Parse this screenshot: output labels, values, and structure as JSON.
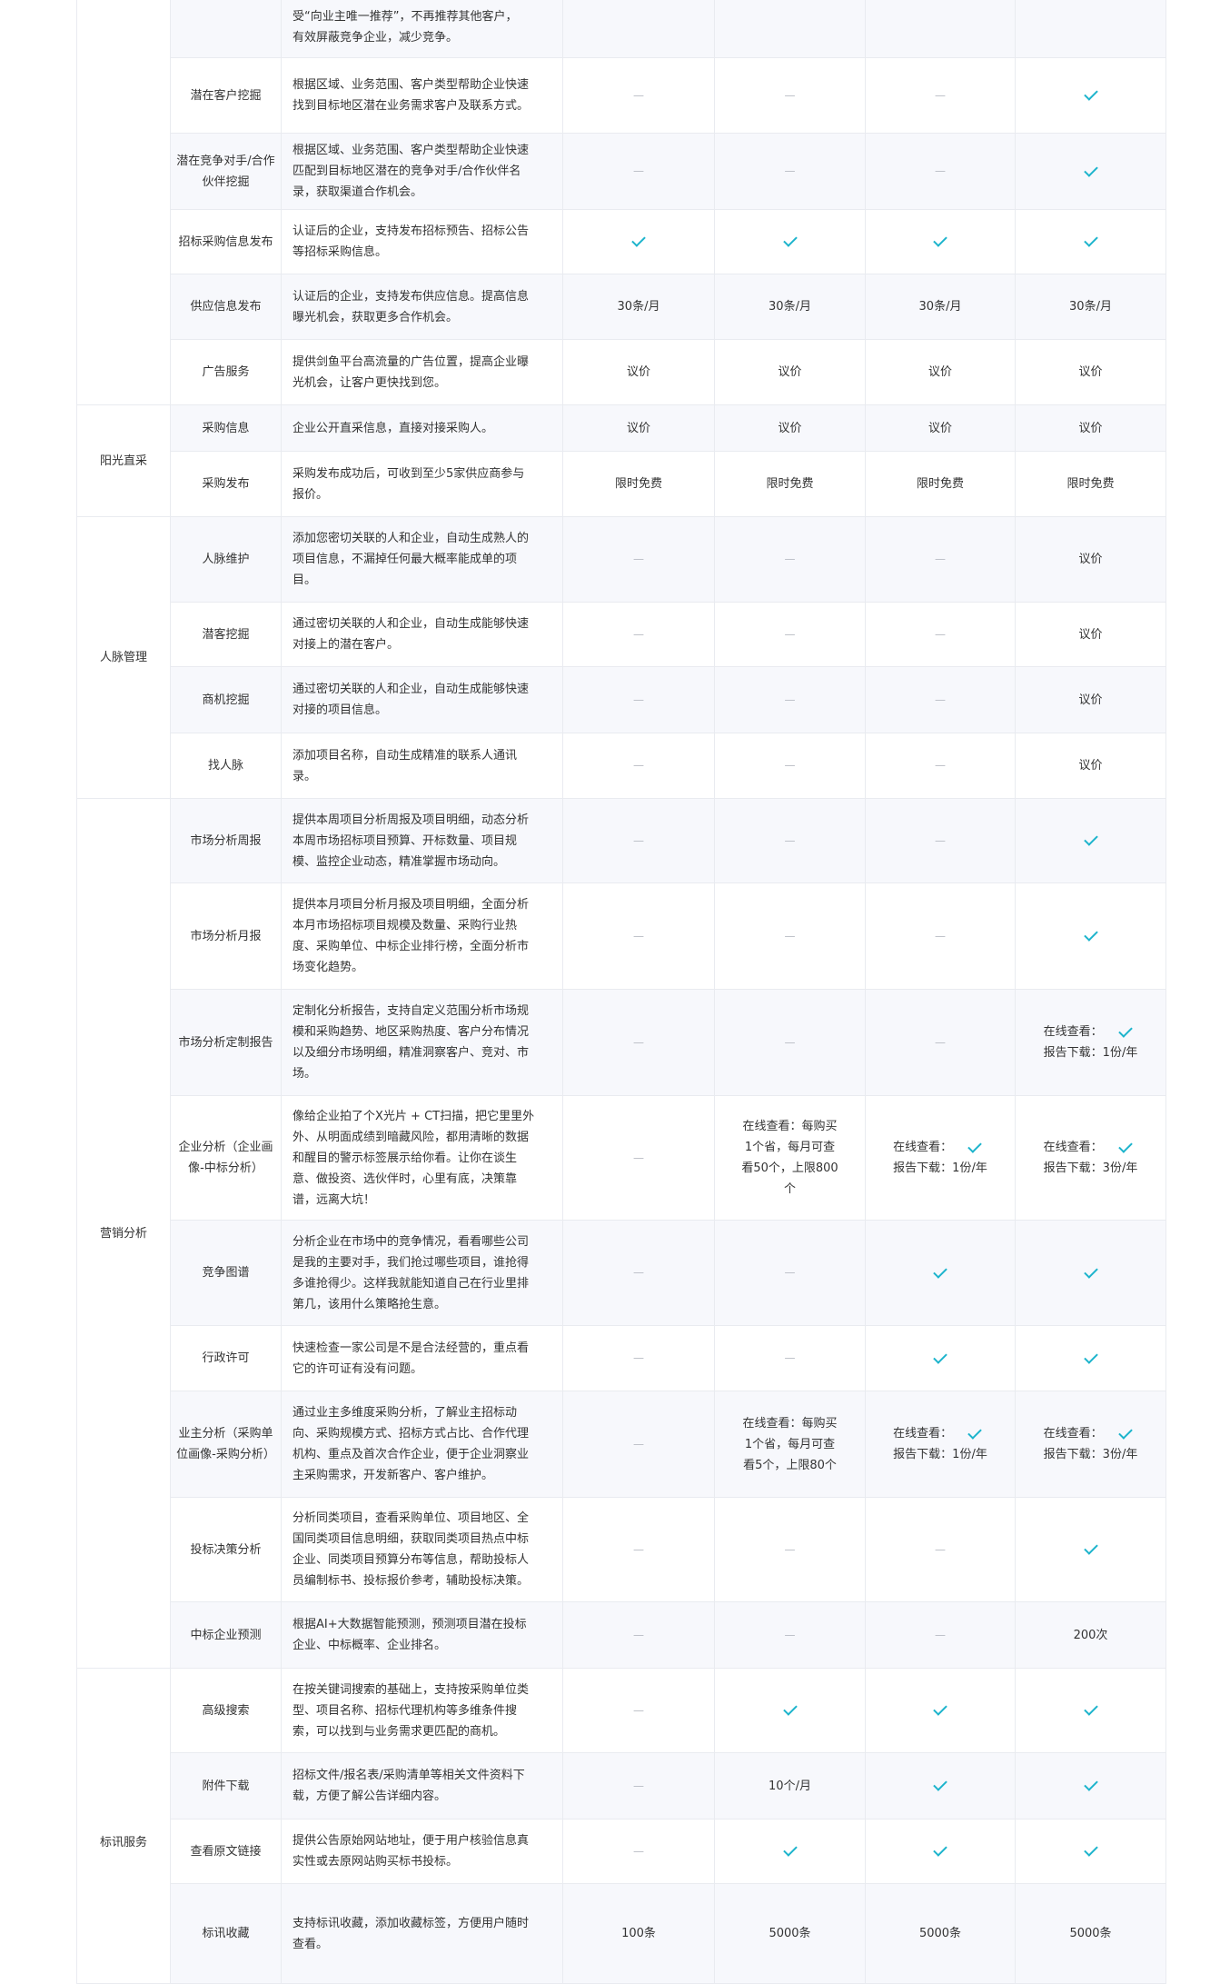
{
  "labels": {
    "online_view": "在线查看：",
    "report_download": "报告下载："
  },
  "colors": {
    "check": "#1db4cc",
    "stripe": "#f7f8fc",
    "border": "#e9ebf0"
  },
  "groups": [
    {
      "category": "",
      "rows": [
        {
          "feature": "",
          "desc": [
            "受“向业主唯一推荐”，不再推荐其他客户，",
            "有效屏蔽竞争企业，减少竞争。"
          ],
          "values": [
            {
              "t": "blank"
            },
            {
              "t": "blank"
            },
            {
              "t": "blank"
            },
            {
              "t": "blank"
            }
          ]
        },
        {
          "feature": "潜在客户挖掘",
          "desc": [
            "根据区域、业务范围、客户类型帮助企业快速",
            "找到目标地区潜在业务需求客户及联系方式。"
          ],
          "values": [
            {
              "t": "dash"
            },
            {
              "t": "dash"
            },
            {
              "t": "dash"
            },
            {
              "t": "check"
            }
          ]
        },
        {
          "feature": "潜在竞争对手/合作伙伴挖掘",
          "desc": [
            "根据区域、业务范围、客户类型帮助企业快速",
            "匹配到目标地区潜在的竞争对手/合作伙伴名",
            "录，获取渠道合作机会。"
          ],
          "values": [
            {
              "t": "dash"
            },
            {
              "t": "dash"
            },
            {
              "t": "dash"
            },
            {
              "t": "check"
            }
          ]
        },
        {
          "feature": "招标采购信息发布",
          "desc": [
            "认证后的企业，支持发布招标预告、招标公告",
            "等招标采购信息。"
          ],
          "values": [
            {
              "t": "check"
            },
            {
              "t": "check"
            },
            {
              "t": "check"
            },
            {
              "t": "check"
            }
          ]
        },
        {
          "feature": "供应信息发布",
          "desc": [
            "认证后的企业，支持发布供应信息。提高信息",
            "曝光机会，获取更多合作机会。"
          ],
          "values": [
            {
              "t": "text",
              "v": "30条/月"
            },
            {
              "t": "text",
              "v": "30条/月"
            },
            {
              "t": "text",
              "v": "30条/月"
            },
            {
              "t": "text",
              "v": "30条/月"
            }
          ]
        },
        {
          "feature": "广告服务",
          "desc": [
            "提供剑鱼平台高流量的广告位置，提高企业曝",
            "光机会，让客户更快找到您。"
          ],
          "values": [
            {
              "t": "text",
              "v": "议价"
            },
            {
              "t": "text",
              "v": "议价"
            },
            {
              "t": "text",
              "v": "议价"
            },
            {
              "t": "text",
              "v": "议价"
            }
          ]
        }
      ]
    },
    {
      "category": "阳光直采",
      "rows": [
        {
          "feature": "采购信息",
          "desc": [
            "企业公开直采信息，直接对接采购人。"
          ],
          "values": [
            {
              "t": "text",
              "v": "议价"
            },
            {
              "t": "text",
              "v": "议价"
            },
            {
              "t": "text",
              "v": "议价"
            },
            {
              "t": "text",
              "v": "议价"
            }
          ]
        },
        {
          "feature": "采购发布",
          "desc": [
            "采购发布成功后，可收到至少5家供应商参与",
            "报价。"
          ],
          "values": [
            {
              "t": "text",
              "v": "限时免费"
            },
            {
              "t": "text",
              "v": "限时免费"
            },
            {
              "t": "text",
              "v": "限时免费"
            },
            {
              "t": "text",
              "v": "限时免费"
            }
          ]
        }
      ]
    },
    {
      "category": "人脉管理",
      "rows": [
        {
          "feature": "人脉维护",
          "desc": [
            "添加您密切关联的人和企业，自动生成熟人的",
            "项目信息，不漏掉任何最大概率能成单的项",
            "目。"
          ],
          "values": [
            {
              "t": "dash"
            },
            {
              "t": "dash"
            },
            {
              "t": "dash"
            },
            {
              "t": "text",
              "v": "议价"
            }
          ]
        },
        {
          "feature": "潜客挖掘",
          "desc": [
            "通过密切关联的人和企业，自动生成能够快速",
            "对接上的潜在客户。"
          ],
          "values": [
            {
              "t": "dash"
            },
            {
              "t": "dash"
            },
            {
              "t": "dash"
            },
            {
              "t": "text",
              "v": "议价"
            }
          ]
        },
        {
          "feature": "商机挖掘",
          "desc": [
            "通过密切关联的人和企业，自动生成能够快速",
            "对接的项目信息。"
          ],
          "values": [
            {
              "t": "dash"
            },
            {
              "t": "dash"
            },
            {
              "t": "dash"
            },
            {
              "t": "text",
              "v": "议价"
            }
          ]
        },
        {
          "feature": "找人脉",
          "desc": [
            "添加项目名称，自动生成精准的联系人通讯",
            "录。"
          ],
          "values": [
            {
              "t": "dash"
            },
            {
              "t": "dash"
            },
            {
              "t": "dash"
            },
            {
              "t": "text",
              "v": "议价"
            }
          ]
        }
      ]
    },
    {
      "category": "营销分析",
      "rows": [
        {
          "feature": "市场分析周报",
          "desc": [
            "提供本周项目分析周报及项目明细，动态分析",
            "本周市场招标项目预算、开标数量、项目规",
            "模、监控企业动态，精准掌握市场动向。"
          ],
          "values": [
            {
              "t": "dash"
            },
            {
              "t": "dash"
            },
            {
              "t": "dash"
            },
            {
              "t": "check"
            }
          ]
        },
        {
          "feature": "市场分析月报",
          "desc": [
            "提供本月项目分析月报及项目明细，全面分析",
            "本月市场招标项目规模及数量、采购行业热",
            "度、采购单位、中标企业排行榜，全面分析市",
            "场变化趋势。"
          ],
          "values": [
            {
              "t": "dash"
            },
            {
              "t": "dash"
            },
            {
              "t": "dash"
            },
            {
              "t": "check"
            }
          ]
        },
        {
          "feature": "市场分析定制报告",
          "desc": [
            "定制化分析报告，支持自定义范围分析市场规",
            "模和采购趋势、地区采购热度、客户分布情况",
            "以及细分市场明细，精准洞察客户、竞对、市",
            "场。"
          ],
          "values": [
            {
              "t": "dash"
            },
            {
              "t": "dash"
            },
            {
              "t": "dash"
            },
            {
              "t": "combo",
              "v": "1份/年"
            }
          ]
        },
        {
          "feature": "企业分析（企业画像-中标分析）",
          "desc": [
            "像给企业拍了个X光片 + CT扫描，把它里里外",
            "外、从明面成绩到暗藏风险，都用清晰的数据",
            "和醒目的警示标签展示给你看。让你在谈生",
            "意、做投资、选伙伴时，心里有底，决策靠",
            "谱，远离大坑！"
          ],
          "values": [
            {
              "t": "dash"
            },
            {
              "t": "text",
              "v": "在线查看：每购买1个省，每月可查看50个，上限800个"
            },
            {
              "t": "combo",
              "v": "1份/年"
            },
            {
              "t": "combo",
              "v": "3份/年"
            }
          ]
        },
        {
          "feature": "竞争图谱",
          "desc": [
            "分析企业在市场中的竞争情况，看看哪些公司",
            "是我的主要对手，我们抢过哪些项目，谁抢得",
            "多谁抢得少。这样我就能知道自己在行业里排",
            "第几，该用什么策略抢生意。"
          ],
          "values": [
            {
              "t": "dash"
            },
            {
              "t": "dash"
            },
            {
              "t": "check"
            },
            {
              "t": "check"
            }
          ]
        },
        {
          "feature": "行政许可",
          "desc": [
            "快速检查一家公司是不是合法经营的，重点看",
            "它的许可证有没有问题。"
          ],
          "values": [
            {
              "t": "dash"
            },
            {
              "t": "dash"
            },
            {
              "t": "check"
            },
            {
              "t": "check"
            }
          ]
        },
        {
          "feature": "业主分析（采购单位画像-采购分析）",
          "desc": [
            "通过业主多维度采购分析，了解业主招标动",
            "向、采购规模方式、招标方式占比、合作代理",
            "机构、重点及首次合作企业，便于企业洞察业",
            "主采购需求，开发新客户、客户维护。"
          ],
          "values": [
            {
              "t": "dash"
            },
            {
              "t": "text",
              "v": "在线查看：每购买1个省，每月可查看5个，上限80个"
            },
            {
              "t": "combo",
              "v": "1份/年"
            },
            {
              "t": "combo",
              "v": "3份/年"
            }
          ]
        },
        {
          "feature": "投标决策分析",
          "desc": [
            "分析同类项目，查看采购单位、项目地区、全",
            "国同类项目信息明细，获取同类项目热点中标",
            "企业、同类项目预算分布等信息，帮助投标人",
            "员编制标书、投标报价参考，辅助投标决策。"
          ],
          "values": [
            {
              "t": "dash"
            },
            {
              "t": "dash"
            },
            {
              "t": "dash"
            },
            {
              "t": "check"
            }
          ]
        },
        {
          "feature": "中标企业预测",
          "desc": [
            "根据AI+大数据智能预测，预测项目潜在投标",
            "企业、中标概率、企业排名。"
          ],
          "values": [
            {
              "t": "dash"
            },
            {
              "t": "dash"
            },
            {
              "t": "dash"
            },
            {
              "t": "text",
              "v": "200次"
            }
          ]
        }
      ]
    },
    {
      "category": "标讯服务",
      "rows": [
        {
          "feature": "高级搜索",
          "desc": [
            "在按关键词搜索的基础上，支持按采购单位类",
            "型、项目名称、招标代理机构等多维条件搜",
            "索，可以找到与业务需求更匹配的商机。"
          ],
          "values": [
            {
              "t": "dash"
            },
            {
              "t": "check"
            },
            {
              "t": "check"
            },
            {
              "t": "check"
            }
          ]
        },
        {
          "feature": "附件下载",
          "desc": [
            "招标文件/报名表/采购清单等相关文件资料下",
            "载，方便了解公告详细内容。"
          ],
          "values": [
            {
              "t": "dash"
            },
            {
              "t": "text",
              "v": "10个/月"
            },
            {
              "t": "check"
            },
            {
              "t": "check"
            }
          ]
        },
        {
          "feature": "查看原文链接",
          "desc": [
            "提供公告原始网站地址，便于用户核验信息真",
            "实性或去原网站购买标书投标。"
          ],
          "values": [
            {
              "t": "dash"
            },
            {
              "t": "check"
            },
            {
              "t": "check"
            },
            {
              "t": "check"
            }
          ]
        },
        {
          "feature": "标讯收藏",
          "desc": [
            "支持标讯收藏，添加收藏标签，方便用户随时",
            "查看。"
          ],
          "values": [
            {
              "t": "text",
              "v": "100条"
            },
            {
              "t": "text",
              "v": "5000条"
            },
            {
              "t": "text",
              "v": "5000条"
            },
            {
              "t": "text",
              "v": "5000条"
            }
          ]
        }
      ]
    }
  ]
}
